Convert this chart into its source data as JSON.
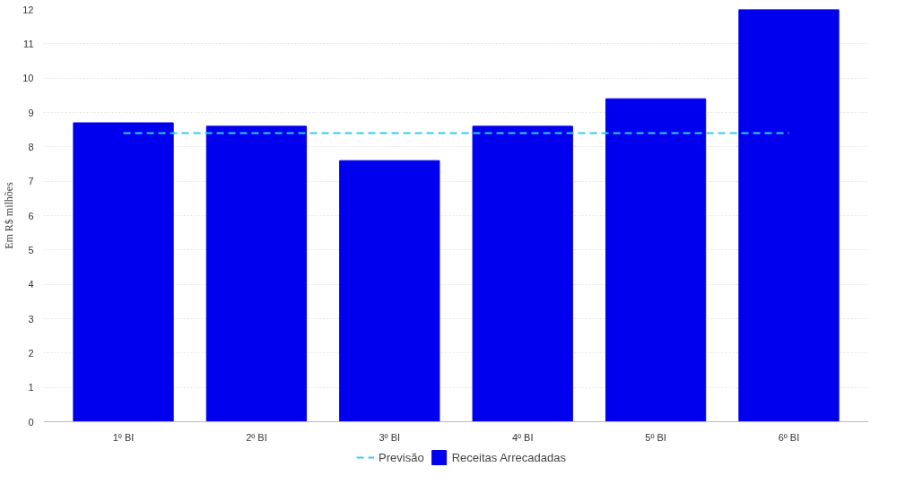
{
  "chart_data": {
    "type": "bar",
    "ylabel": "Em R$ milhões",
    "categories": [
      "1º BI",
      "2º BI",
      "3º BI",
      "4º BI",
      "5º BI",
      "6º BI"
    ],
    "series": [
      {
        "name": "Receitas Arrecadadas",
        "color": "#0000ee",
        "values": [
          8.7,
          8.6,
          7.6,
          8.6,
          9.4,
          12.0
        ]
      },
      {
        "name": "Previsão",
        "type": "line",
        "line_style": "dashed",
        "color": "#33ccee",
        "values": [
          8.4,
          8.4,
          8.4,
          8.4,
          8.4,
          8.4
        ]
      }
    ],
    "ylim": [
      0,
      12
    ],
    "yticks": [
      0,
      1,
      2,
      3,
      4,
      5,
      6,
      7,
      8,
      9,
      10,
      11,
      12
    ],
    "grid": "y",
    "legend": "bottom"
  }
}
